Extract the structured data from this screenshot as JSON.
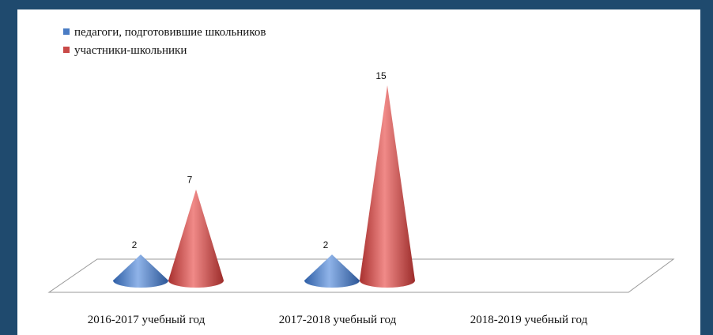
{
  "chart_data": {
    "type": "cone",
    "categories": [
      "2016-2017 учебный год",
      "2017-2018 учебный год",
      "2018-2019 учебный год"
    ],
    "series": [
      {
        "name": "педагоги, подготовившие школьников",
        "color": "#4a7cc4",
        "values": [
          2,
          2,
          null
        ]
      },
      {
        "name": "участники-школьники",
        "color": "#c94a48",
        "values": [
          7,
          15,
          null
        ]
      }
    ]
  }
}
